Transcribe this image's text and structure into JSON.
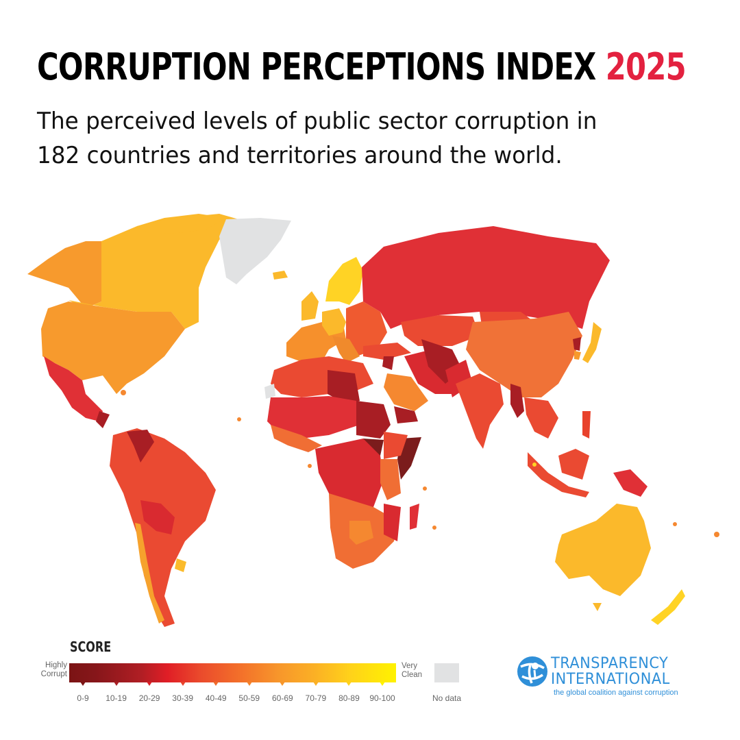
{
  "header": {
    "title": "CORRUPTION PERCEPTIONS INDEX",
    "year": "2025",
    "subtitle_line1": "The perceived levels of public sector corruption in",
    "subtitle_line2": "182 countries and territories around the world."
  },
  "legend": {
    "title": "SCORE",
    "left_label_1": "Highly",
    "left_label_2": "Corrupt",
    "right_label_1": "Very",
    "right_label_2": "Clean",
    "no_data_label": "No data",
    "bands": [
      "0-9",
      "10-19",
      "20-29",
      "30-39",
      "40-49",
      "50-59",
      "60-69",
      "70-79",
      "80-89",
      "90-100"
    ],
    "band_colors": [
      "#7b1414",
      "#a81e24",
      "#d91f26",
      "#e8422c",
      "#ef6a2b",
      "#f4822b",
      "#f7962b",
      "#fbb025",
      "#ffd21a",
      "#fff200"
    ],
    "no_data_color": "#e1e2e3"
  },
  "logo": {
    "line1": "TRANSPARENCY",
    "line2": "INTERNATIONAL",
    "tagline": "the global coalition against corruption",
    "color": "#2f8fd8"
  },
  "colors": {
    "accent": "#e3213f",
    "text": "#000000"
  },
  "chart_data": {
    "type": "choropleth-map",
    "title": "Corruption Perceptions Index 2025",
    "subtitle": "The perceived levels of public sector corruption in 182 countries and territories around the world.",
    "legend_title": "SCORE",
    "scale": {
      "min_label": "Highly Corrupt",
      "max_label": "Very Clean",
      "bands": [
        "0-9",
        "10-19",
        "20-29",
        "30-39",
        "40-49",
        "50-59",
        "60-69",
        "70-79",
        "80-89",
        "90-100"
      ],
      "no_data": "No data"
    },
    "regions_approx_band": [
      {
        "region": "Canada",
        "band": "70-79"
      },
      {
        "region": "United States",
        "band": "60-69"
      },
      {
        "region": "Alaska",
        "band": "60-69"
      },
      {
        "region": "Greenland",
        "band": "No data"
      },
      {
        "region": "Mexico",
        "band": "20-29"
      },
      {
        "region": "Central America",
        "band": "20-29"
      },
      {
        "region": "Nicaragua",
        "band": "10-19"
      },
      {
        "region": "Venezuela",
        "band": "10-19"
      },
      {
        "region": "Brazil",
        "band": "30-39"
      },
      {
        "region": "Colombia/Peru/Ecuador",
        "band": "30-39"
      },
      {
        "region": "Bolivia/Paraguay",
        "band": "20-29"
      },
      {
        "region": "Argentina",
        "band": "30-39"
      },
      {
        "region": "Chile",
        "band": "60-69"
      },
      {
        "region": "Uruguay",
        "band": "70-79"
      },
      {
        "region": "Nordics (Finland, Sweden, Norway, Denmark)",
        "band": "80-89"
      },
      {
        "region": "UK/Germany/Ireland",
        "band": "70-79"
      },
      {
        "region": "France/Spain",
        "band": "60-69"
      },
      {
        "region": "Eastern Europe",
        "band": "40-49"
      },
      {
        "region": "Russia",
        "band": "20-29"
      },
      {
        "region": "Kazakhstan/Mongolia",
        "band": "30-39"
      },
      {
        "region": "China",
        "band": "40-49"
      },
      {
        "region": "Japan",
        "band": "70-79"
      },
      {
        "region": "South Korea",
        "band": "60-69"
      },
      {
        "region": "North Korea",
        "band": "10-19"
      },
      {
        "region": "India",
        "band": "30-39"
      },
      {
        "region": "Iran/Pakistan",
        "band": "20-29"
      },
      {
        "region": "Afghanistan/Turkmenistan",
        "band": "10-19"
      },
      {
        "region": "Saudi Arabia",
        "band": "50-59"
      },
      {
        "region": "Yemen/Syria",
        "band": "10-19"
      },
      {
        "region": "Myanmar",
        "band": "10-19"
      },
      {
        "region": "Southeast Asia",
        "band": "30-39"
      },
      {
        "region": "Indonesia",
        "band": "30-39"
      },
      {
        "region": "Papua New Guinea",
        "band": "20-29"
      },
      {
        "region": "Australia",
        "band": "70-79"
      },
      {
        "region": "New Zealand",
        "band": "80-89"
      },
      {
        "region": "North Africa (Algeria/Morocco/Egypt)",
        "band": "30-39"
      },
      {
        "region": "Libya/Sudan",
        "band": "10-19"
      },
      {
        "region": "South Sudan/Somalia",
        "band": "0-9"
      },
      {
        "region": "Central Africa",
        "band": "20-29"
      },
      {
        "region": "Ethiopia/Kenya",
        "band": "30-39"
      },
      {
        "region": "Tanzania",
        "band": "40-49"
      },
      {
        "region": "Southern Africa (Namibia/South Africa)",
        "band": "40-49"
      },
      {
        "region": "Botswana",
        "band": "50-59"
      },
      {
        "region": "Madagascar",
        "band": "20-29"
      },
      {
        "region": "Western Sahara",
        "band": "No data"
      }
    ]
  }
}
